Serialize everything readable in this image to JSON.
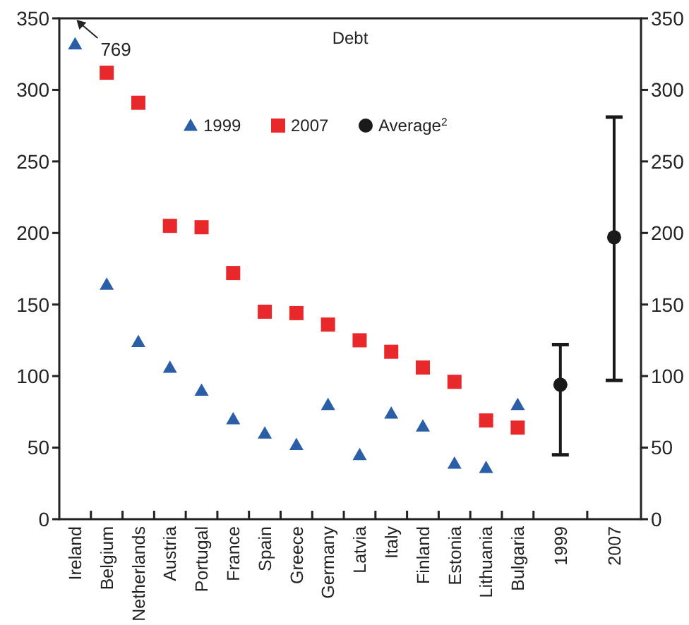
{
  "chart_data": {
    "type": "scatter",
    "title": "Debt",
    "categories": [
      "Ireland",
      "Belgium",
      "Netherlands",
      "Austria",
      "Portugal",
      "France",
      "Spain",
      "Greece",
      "Germany",
      "Latvia",
      "Italy",
      "Finland",
      "Estonia",
      "Lithuania",
      "Bulgaria",
      "1999",
      "2007"
    ],
    "series": [
      {
        "name": "1999",
        "color": "#2a5fa8",
        "marker": "triangle",
        "values": [
          332,
          164,
          124,
          106,
          90,
          70,
          60,
          52,
          80,
          45,
          74,
          65,
          39,
          36,
          80,
          null,
          null
        ]
      },
      {
        "name": "2007",
        "color": "#e8282a",
        "marker": "square",
        "values": [
          null,
          312,
          291,
          205,
          204,
          172,
          145,
          144,
          136,
          125,
          117,
          106,
          96,
          69,
          64,
          null,
          null
        ]
      },
      {
        "name": "Average$^{2}$",
        "color": "#1a1a1a",
        "marker": "circle",
        "values": [
          null,
          null,
          null,
          null,
          null,
          null,
          null,
          null,
          null,
          null,
          null,
          null,
          null,
          null,
          null,
          94,
          197
        ],
        "errors": [
          null,
          null,
          null,
          null,
          null,
          null,
          null,
          null,
          null,
          null,
          null,
          null,
          null,
          null,
          null,
          [
            45,
            122
          ],
          [
            97,
            281
          ]
        ]
      }
    ],
    "annotations": [
      "769"
    ],
    "ylim": [
      0,
      350
    ],
    "yticks": [
      0,
      50,
      100,
      150,
      200,
      250,
      300,
      350
    ],
    "y2lim": [
      0,
      350
    ],
    "y2ticks": [
      0,
      50,
      100,
      150,
      200,
      250,
      300,
      350
    ],
    "legend": "top",
    "grid": false
  }
}
